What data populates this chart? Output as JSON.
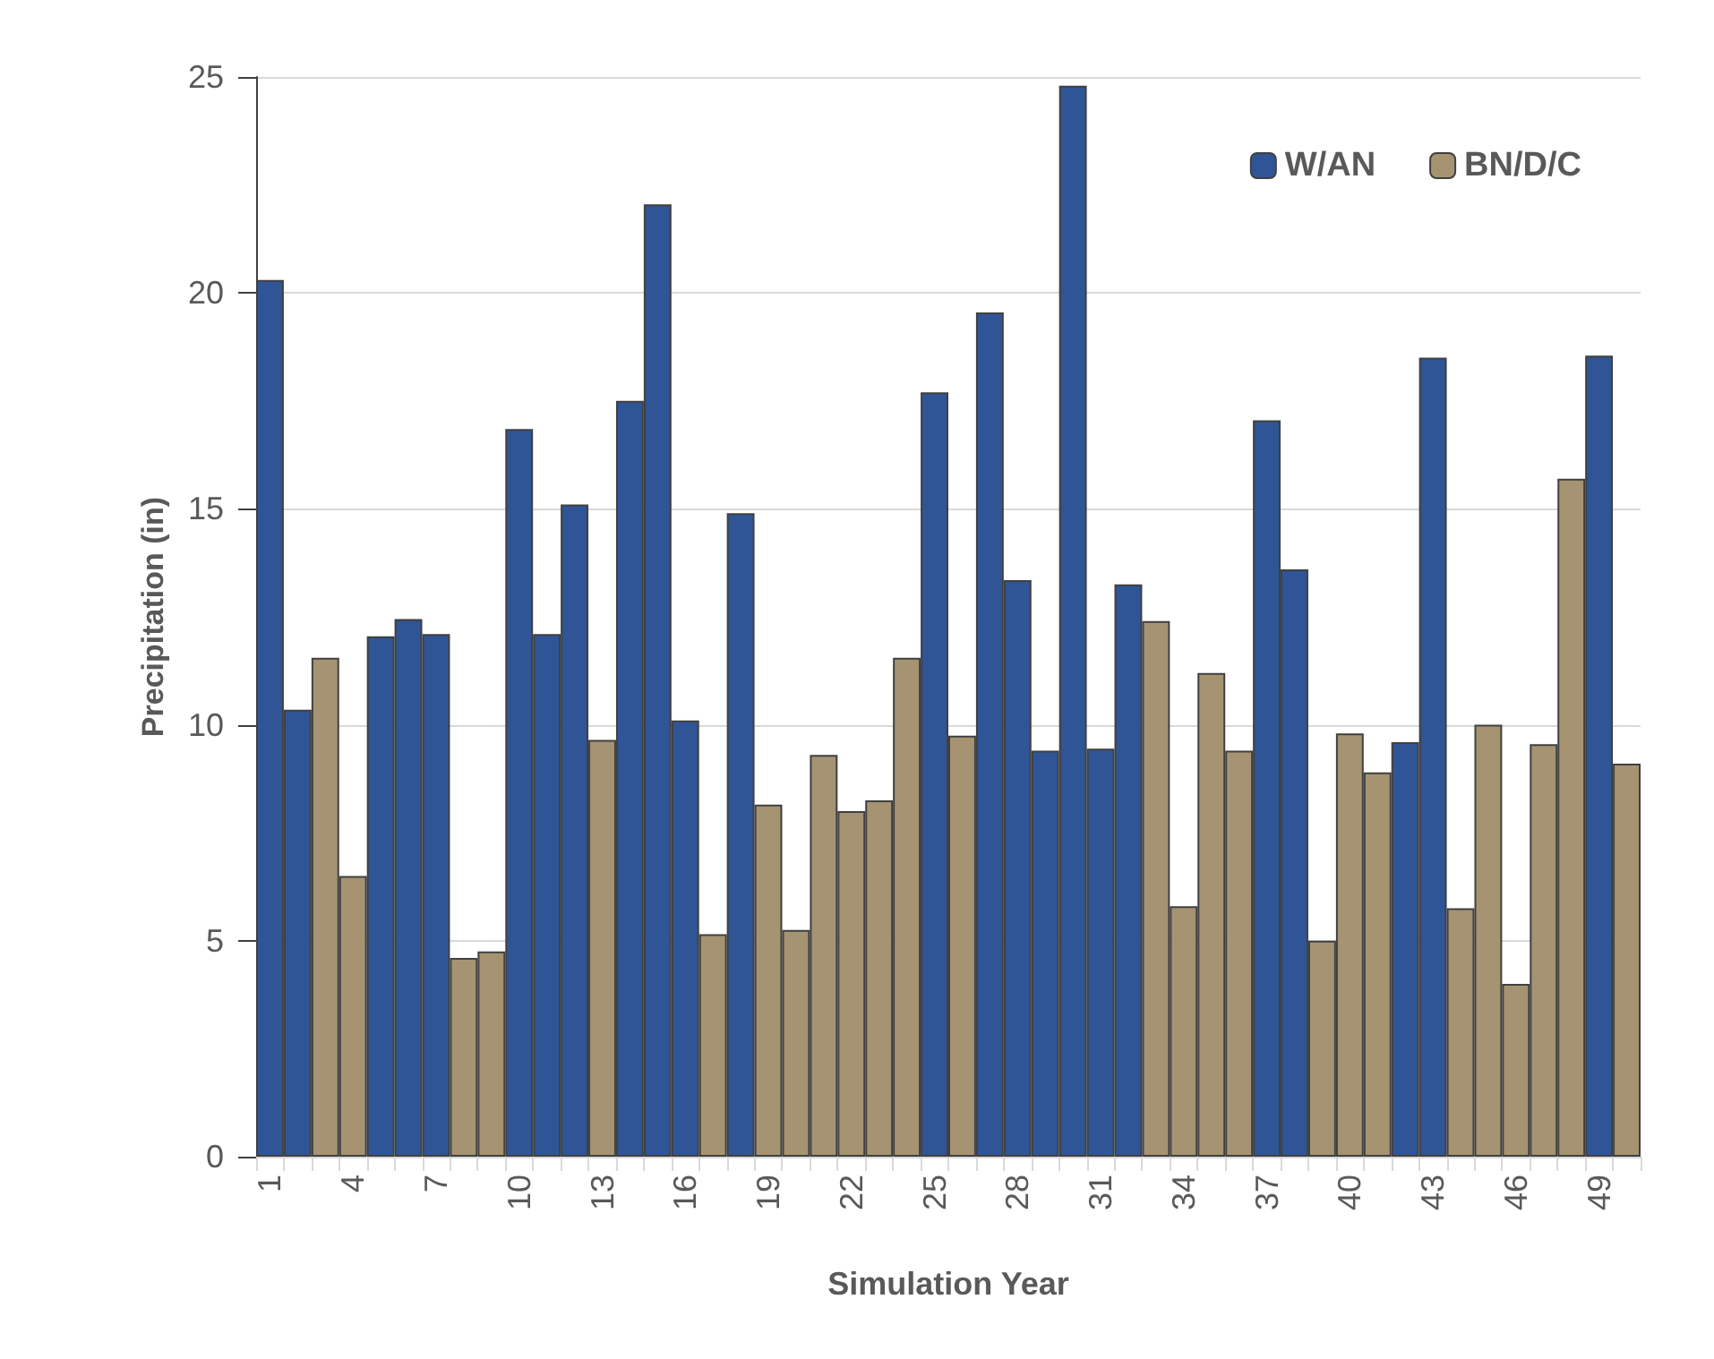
{
  "chart_data": {
    "type": "bar",
    "xlabel": "Simulation Year",
    "ylabel": "Precipitation (in)",
    "categories": [
      "1",
      null,
      null,
      "4",
      null,
      null,
      "7",
      null,
      null,
      "10",
      null,
      null,
      "13",
      null,
      null,
      "16",
      null,
      null,
      "19",
      null,
      null,
      "22",
      null,
      null,
      "25",
      null,
      null,
      "28",
      null,
      null,
      "31",
      null,
      null,
      "34",
      null,
      null,
      "37",
      null,
      null,
      "40",
      null,
      null,
      "43",
      null,
      null,
      "46",
      null,
      null,
      "49",
      null
    ],
    "series": [
      {
        "name": "W/AN",
        "color": "#2f5597",
        "values": [
          20.3,
          10.35,
          null,
          null,
          12.05,
          12.45,
          12.1,
          null,
          null,
          16.85,
          12.1,
          15.1,
          null,
          17.5,
          22.05,
          10.1,
          null,
          14.9,
          null,
          null,
          null,
          null,
          null,
          null,
          17.7,
          null,
          19.55,
          13.35,
          9.4,
          24.8,
          9.45,
          13.25,
          null,
          null,
          null,
          null,
          17.05,
          13.6,
          null,
          null,
          null,
          9.6,
          18.5,
          null,
          null,
          null,
          null,
          null,
          18.55,
          null
        ]
      },
      {
        "name": "BN/D/C",
        "color": "#a59372",
        "values": [
          null,
          null,
          11.55,
          6.5,
          null,
          null,
          null,
          4.6,
          4.75,
          null,
          null,
          null,
          9.65,
          null,
          null,
          null,
          5.15,
          null,
          8.15,
          5.25,
          9.3,
          8.0,
          8.25,
          11.55,
          null,
          9.75,
          null,
          null,
          null,
          null,
          null,
          null,
          12.4,
          5.8,
          11.2,
          9.4,
          null,
          null,
          5.0,
          9.8,
          8.9,
          null,
          null,
          5.75,
          10.0,
          4.0,
          9.55,
          15.7,
          null,
          9.1
        ]
      }
    ],
    "stacked": true,
    "ylim": [
      0,
      25
    ],
    "yticks": [
      0,
      5,
      10,
      15,
      20,
      25
    ],
    "grid": "y",
    "legend": "top right"
  }
}
